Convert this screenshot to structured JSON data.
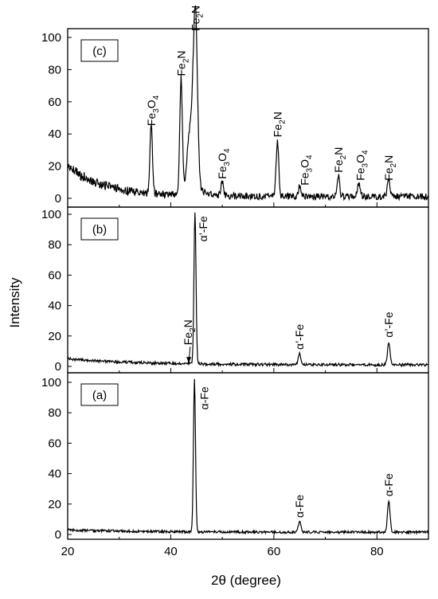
{
  "chart_data": [
    {
      "type": "line",
      "panel_tag": "(c)",
      "xlim": [
        20,
        90
      ],
      "ylim": [
        -5,
        108
      ],
      "yticks": [
        0,
        20,
        40,
        60,
        80,
        100
      ],
      "peaks": [
        {
          "x": 36.2,
          "y": 42
        },
        {
          "x": 42.0,
          "y": 72
        },
        {
          "x": 44.8,
          "y": 100
        },
        {
          "x": 50.0,
          "y": 9
        },
        {
          "x": 60.7,
          "y": 35
        },
        {
          "x": 65.0,
          "y": 6
        },
        {
          "x": 72.5,
          "y": 13
        },
        {
          "x": 76.5,
          "y": 8
        },
        {
          "x": 82.3,
          "y": 11
        }
      ],
      "annotations": [
        {
          "base": "Fe",
          "sub1": "3",
          "mid": "O",
          "sub2": "4",
          "x": 36.2,
          "y": 45
        },
        {
          "base": "Fe",
          "sub1": "2",
          "mid": "N",
          "sub2": "",
          "x": 42.0,
          "y": 76
        },
        {
          "base": "Fe",
          "sub1": "2",
          "mid": "N",
          "sub2": "",
          "x": 44.8,
          "y": 104
        },
        {
          "base": "Fe",
          "sub1": "3",
          "mid": "O",
          "sub2": "4",
          "x": 50.0,
          "y": 12
        },
        {
          "base": "Fe",
          "sub1": "2",
          "mid": "N",
          "sub2": "",
          "x": 60.7,
          "y": 38
        },
        {
          "base": "Fe",
          "sub1": "3",
          "mid": "O",
          "sub2": "4",
          "x": 66.0,
          "y": 8
        },
        {
          "base": "Fe",
          "sub1": "2",
          "mid": "N",
          "sub2": "",
          "x": 72.5,
          "y": 16
        },
        {
          "base": "Fe",
          "sub1": "3",
          "mid": "O",
          "sub2": "4",
          "x": 76.8,
          "y": 11
        },
        {
          "base": "Fe",
          "sub1": "2",
          "mid": "N",
          "sub2": "",
          "x": 82.3,
          "y": 11
        }
      ]
    },
    {
      "type": "line",
      "panel_tag": "(b)",
      "xlim": [
        20,
        90
      ],
      "ylim": [
        -5,
        108
      ],
      "yticks": [
        0,
        20,
        40,
        60,
        80,
        100
      ],
      "peaks": [
        {
          "x": 44.7,
          "y": 100
        },
        {
          "x": 65.0,
          "y": 7
        },
        {
          "x": 82.3,
          "y": 15
        }
      ],
      "annotations": [
        {
          "text": "α’-Fe",
          "x": 46.3,
          "y": 82
        },
        {
          "text": "α’-Fe",
          "x": 65.0,
          "y": 11
        },
        {
          "text": "α’-Fe",
          "x": 82.3,
          "y": 19
        },
        {
          "base": "Fe",
          "sub1": "2",
          "mid": "N",
          "sub2": "",
          "x": 43.3,
          "y": 14,
          "arrow_to_x": 43.5,
          "arrow_to_y": 2
        }
      ]
    },
    {
      "type": "line",
      "panel_tag": "(a)",
      "xlim": [
        20,
        90
      ],
      "ylim": [
        -5,
        108
      ],
      "xticks": [
        20,
        40,
        60,
        80
      ],
      "yticks": [
        0,
        20,
        40,
        60,
        80,
        100
      ],
      "xlabel": "2θ (degree)",
      "peaks": [
        {
          "x": 44.6,
          "y": 100
        },
        {
          "x": 65.0,
          "y": 7
        },
        {
          "x": 82.3,
          "y": 21
        }
      ],
      "annotations": [
        {
          "text": "α-Fe",
          "x": 46.5,
          "y": 82
        },
        {
          "text": "α-Fe",
          "x": 65.0,
          "y": 11
        },
        {
          "text": "α-Fe",
          "x": 82.3,
          "y": 25
        }
      ]
    }
  ],
  "shared_ylabel": "Intensity"
}
